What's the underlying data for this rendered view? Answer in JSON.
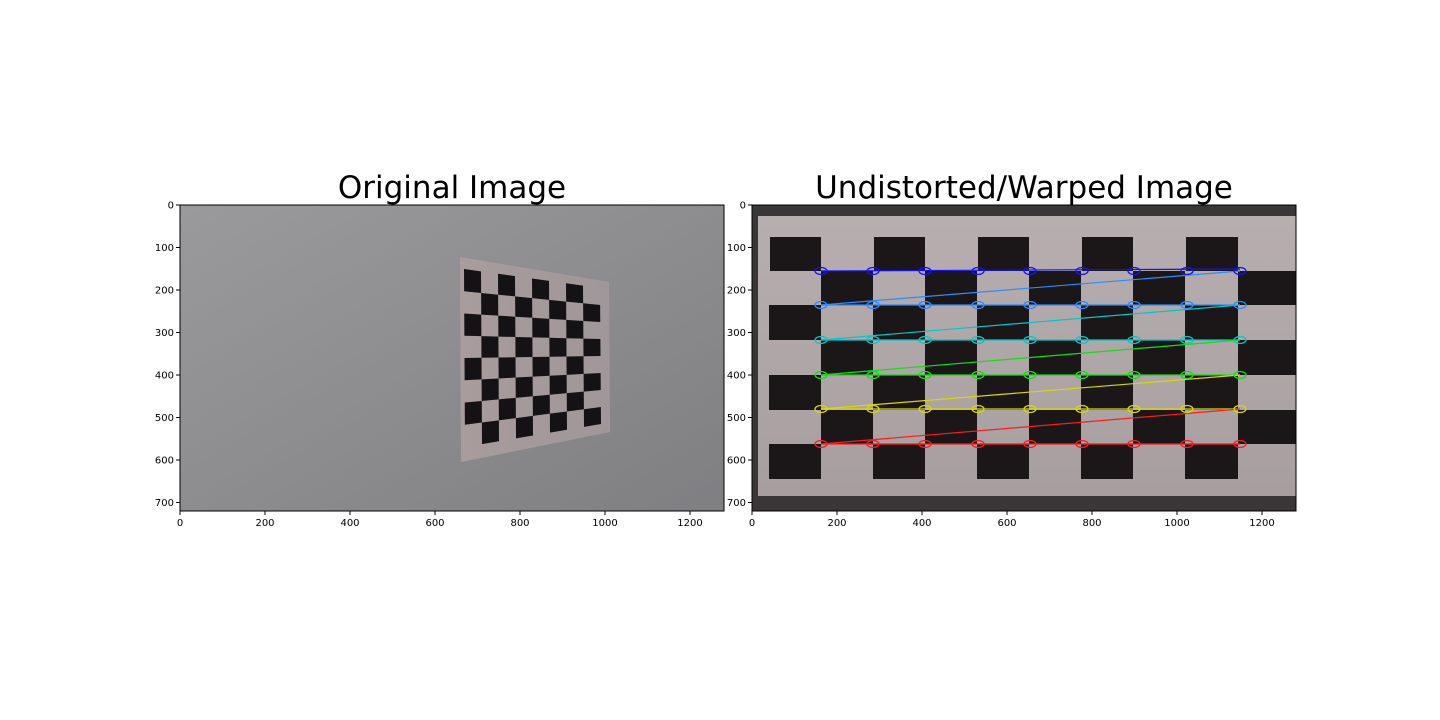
{
  "figure": {
    "panels": [
      {
        "id": "left",
        "title": "Original Image",
        "x_ticks": [
          "0",
          "200",
          "400",
          "600",
          "800",
          "1000",
          "1200"
        ],
        "y_ticks": [
          "0",
          "100",
          "200",
          "300",
          "400",
          "500",
          "600",
          "700"
        ],
        "image": "grey wall with a small perspective-skewed black and white checkerboard on the right"
      },
      {
        "id": "right",
        "title": "Undistorted/Warped Image",
        "x_ticks": [
          "0",
          "200",
          "400",
          "600",
          "800",
          "1000",
          "1200"
        ],
        "y_ticks": [
          "0",
          "100",
          "200",
          "300",
          "400",
          "500",
          "600",
          "700"
        ],
        "image": "warped checkerboard filling the frame with detected corners drawn as colored circles connected by lines",
        "corner_row_colors": [
          "#1010ff",
          "#2a8cff",
          "#00c8c8",
          "#10e010",
          "#d8d800",
          "#ff1a1a"
        ]
      }
    ]
  }
}
